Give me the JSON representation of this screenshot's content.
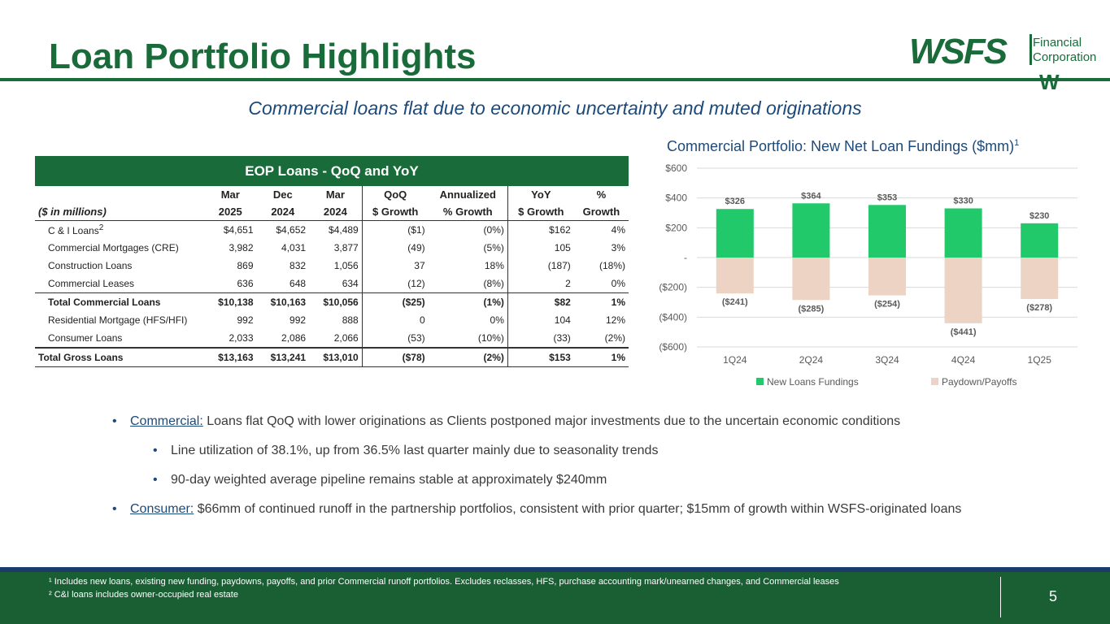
{
  "title": "Loan Portfolio Highlights",
  "logo": {
    "brand": "WSFS",
    "line1": "Financial",
    "line2": "Corporation",
    "mark": "W"
  },
  "subtitle": "Commercial loans flat due to economic uncertainty and muted originations",
  "table": {
    "heading": "EOP Loans - QoQ and YoY",
    "unit_note": "($ in millions)",
    "col_top": [
      "Mar",
      "Dec",
      "Mar",
      "QoQ",
      "Annualized",
      "YoY",
      "%"
    ],
    "col_bottom": [
      "2025",
      "2024",
      "2024",
      "$ Growth",
      "% Growth",
      "$ Growth",
      "Growth"
    ],
    "rows": [
      {
        "label": "C & I Loans",
        "sup": "2",
        "v": [
          "$4,651",
          "$4,652",
          "$4,489",
          "($1)",
          "(0%)",
          "$162",
          "4%"
        ]
      },
      {
        "label": "Commercial Mortgages (CRE)",
        "sup": "",
        "v": [
          "3,982",
          "4,031",
          "3,877",
          "(49)",
          "(5%)",
          "105",
          "3%"
        ]
      },
      {
        "label": "Construction Loans",
        "sup": "",
        "v": [
          "869",
          "832",
          "1,056",
          "37",
          "18%",
          "(187)",
          "(18%)"
        ]
      },
      {
        "label": "Commercial Leases",
        "sup": "",
        "v": [
          "636",
          "648",
          "634",
          "(12)",
          "(8%)",
          "2",
          "0%"
        ]
      },
      {
        "label": "Total Commercial Loans",
        "sup": "",
        "v": [
          "$10,138",
          "$10,163",
          "$10,056",
          "($25)",
          "(1%)",
          "$82",
          "1%"
        ]
      },
      {
        "label": "Residential Mortgage (HFS/HFI)",
        "sup": "",
        "v": [
          "992",
          "992",
          "888",
          "0",
          "0%",
          "104",
          "12%"
        ]
      },
      {
        "label": "Consumer Loans",
        "sup": "",
        "v": [
          "2,033",
          "2,086",
          "2,066",
          "(53)",
          "(10%)",
          "(33)",
          "(2%)"
        ]
      },
      {
        "label": "Total Gross Loans",
        "sup": "",
        "v": [
          "$13,163",
          "$13,241",
          "$13,010",
          "($78)",
          "(2%)",
          "$153",
          "1%"
        ]
      }
    ]
  },
  "chart_title": "Commercial Portfolio: New Net Loan Fundings ($mm)",
  "chart_title_sup": "1",
  "chart_data": {
    "type": "bar",
    "stacked": true,
    "title": "Commercial Portfolio: New Net Loan Fundings ($mm)",
    "categories": [
      "1Q24",
      "2Q24",
      "3Q24",
      "4Q24",
      "1Q25"
    ],
    "series": [
      {
        "name": "New Loans Fundings",
        "values": [
          326,
          364,
          353,
          330,
          230
        ],
        "labels": [
          "$326",
          "$364",
          "$353",
          "$330",
          "$230"
        ],
        "color": "#22c96a"
      },
      {
        "name": "Paydown/Payoffs",
        "values": [
          -241,
          -285,
          -254,
          -441,
          -278
        ],
        "labels": [
          "($241)",
          "($285)",
          "($254)",
          "($441)",
          "($278)"
        ],
        "color": "#ecd3c4"
      }
    ],
    "ylim": [
      -600,
      600
    ],
    "yticks": [
      600,
      400,
      200,
      0,
      -200,
      -400,
      -600
    ],
    "ytick_labels": [
      "$600",
      "$400",
      "$200",
      "-",
      "($200)",
      "($400)",
      "($600)"
    ],
    "legend": "bottom",
    "grid": true
  },
  "bullets": {
    "b1_lead": "Commercial:",
    "b1_text": " Loans flat QoQ with lower originations as Clients postponed major investments due to the uncertain economic conditions",
    "b1_sub1": "Line utilization of 38.1%, up from 36.5% last quarter mainly due to seasonality trends",
    "b1_sub2": "90-day weighted average pipeline remains stable at approximately $240mm",
    "b2_lead": "Consumer:",
    "b2_text": " $66mm of continued runoff in the partnership portfolios, consistent with prior quarter; $15mm of growth within WSFS-originated loans"
  },
  "footer": {
    "fn1": "¹ Includes new loans, existing new funding, paydowns, payoffs, and prior Commercial runoff portfolios. Excludes reclasses, HFS, purchase accounting mark/unearned changes, and Commercial leases",
    "fn2": "² C&I loans includes owner-occupied real estate",
    "page": "5"
  }
}
